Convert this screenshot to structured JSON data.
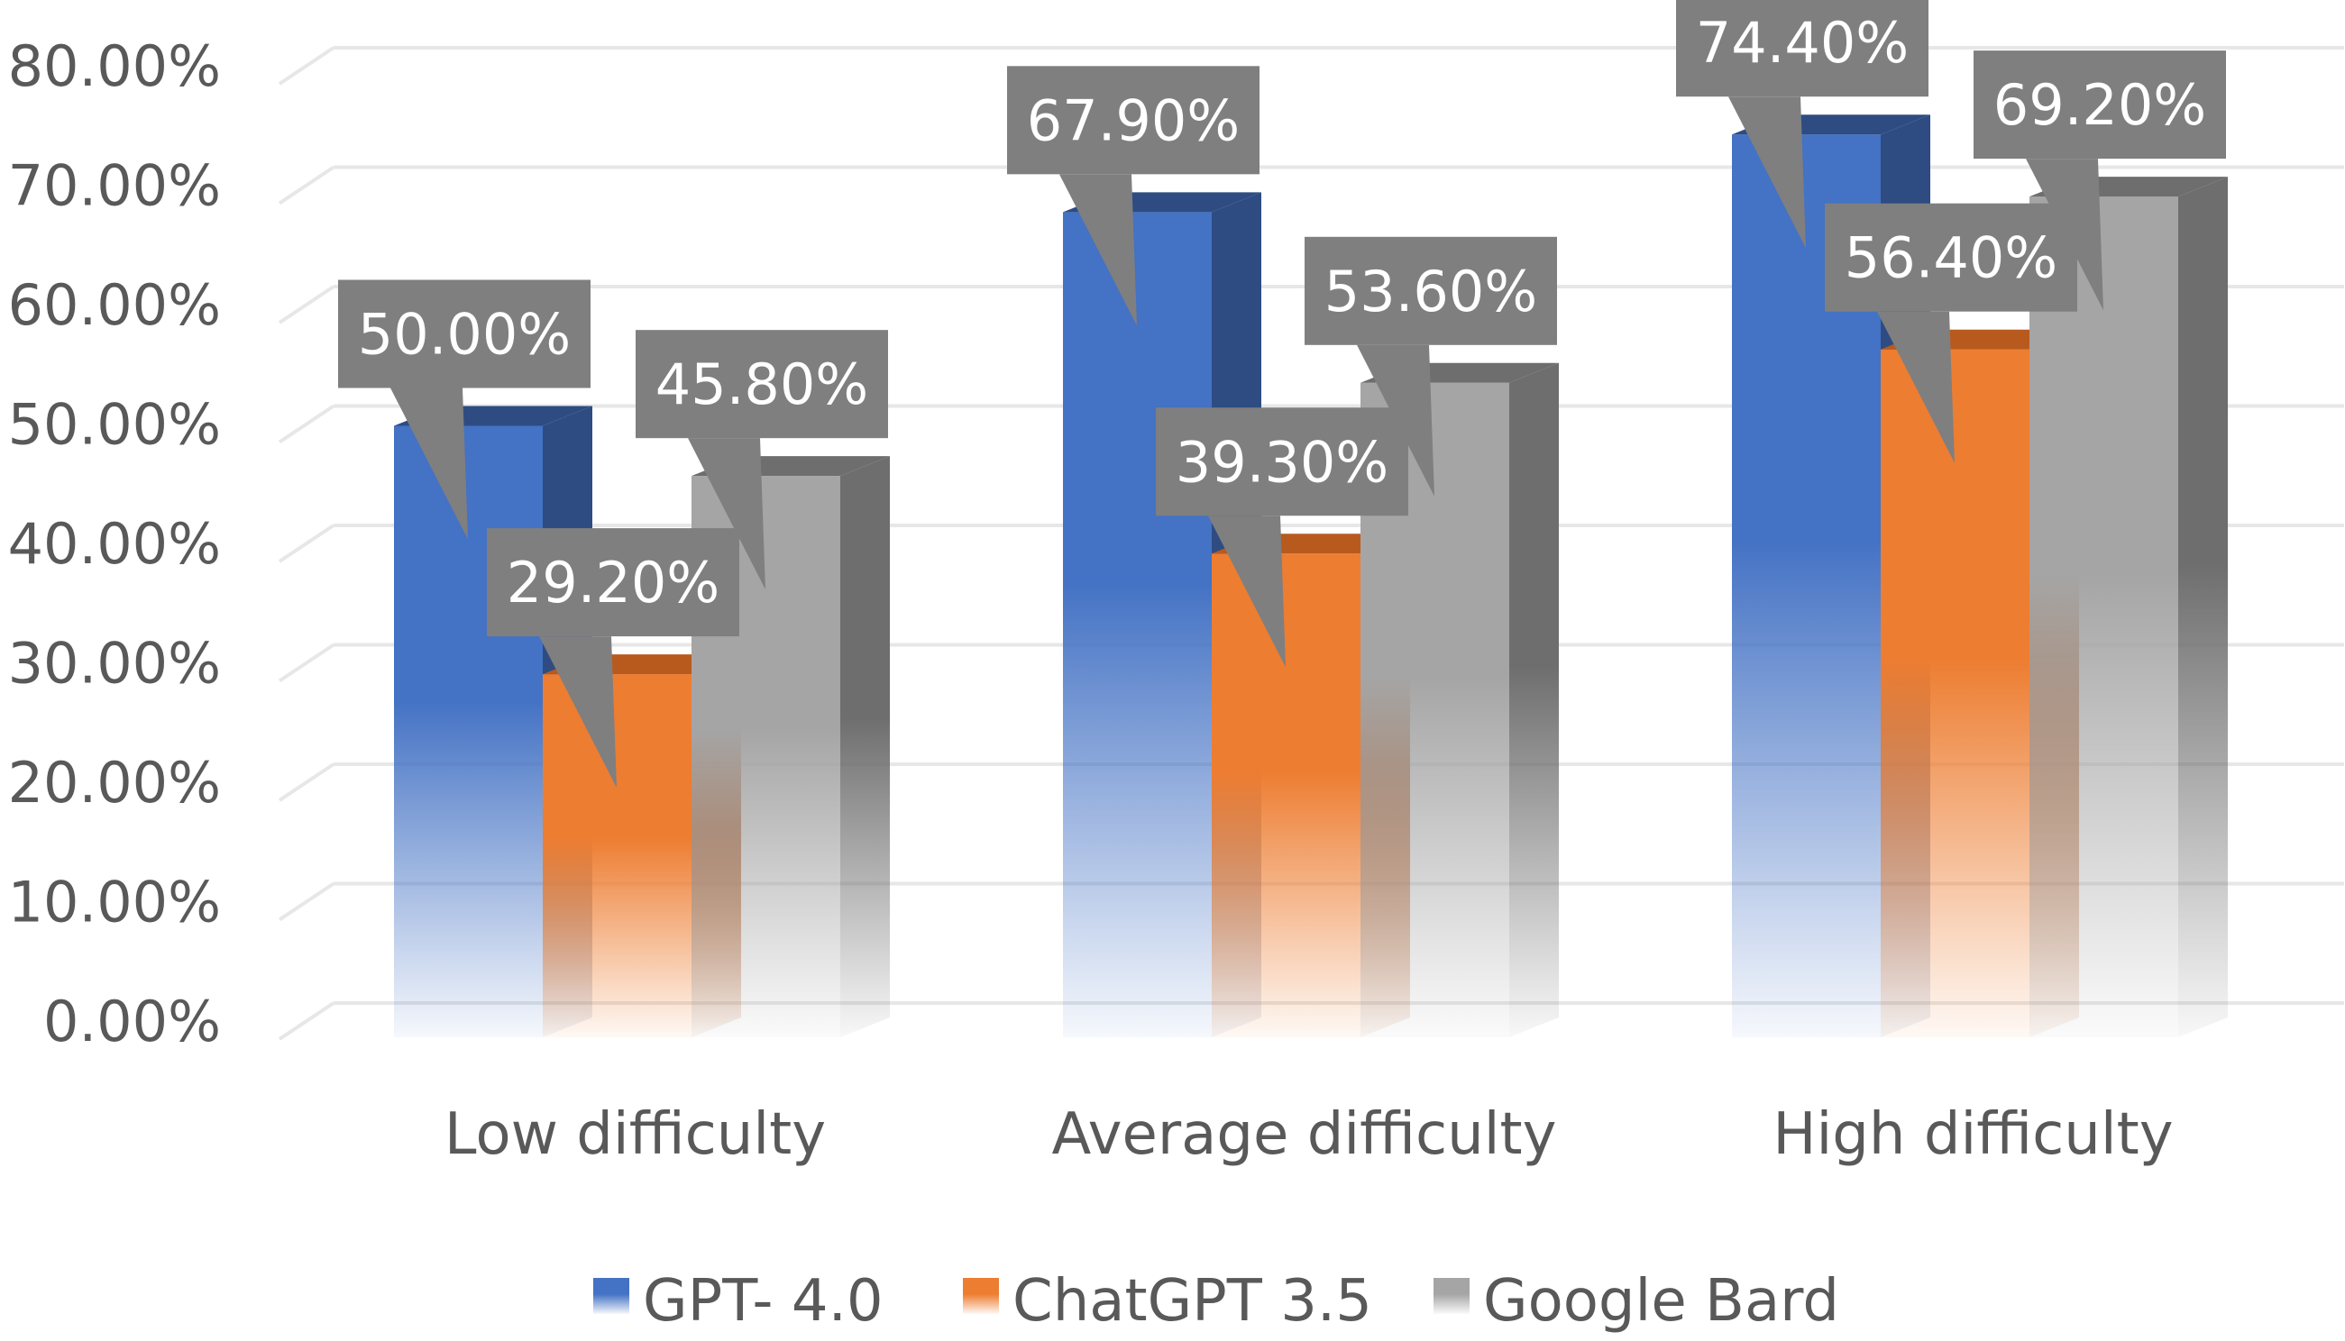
{
  "chart_data": {
    "type": "bar",
    "title": "",
    "xlabel": "",
    "ylabel": "",
    "ylim": [
      0,
      0.8
    ],
    "yticks": [
      0,
      0.1,
      0.2,
      0.3,
      0.4,
      0.5,
      0.6,
      0.7,
      0.8
    ],
    "ytick_labels": [
      "0.00%",
      "10.00%",
      "20.00%",
      "30.00%",
      "40.00%",
      "50.00%",
      "60.00%",
      "70.00%",
      "80.00%"
    ],
    "categories": [
      "Low difficulty",
      "Average difficulty",
      "High difficulty"
    ],
    "series": [
      {
        "name": "GPT- 4.0",
        "values": [
          0.5,
          0.679,
          0.744
        ],
        "labels": [
          "50.00%",
          "67.90%",
          "74.40%"
        ],
        "color": "#4472C4",
        "side_color": "#2E4C82"
      },
      {
        "name": "ChatGPT 3.5",
        "values": [
          0.292,
          0.393,
          0.564
        ],
        "labels": [
          "29.20%",
          "39.30%",
          "56.40%"
        ],
        "color": "#ED7D31",
        "side_color": "#B85A1E"
      },
      {
        "name": "Google Bard",
        "values": [
          0.458,
          0.536,
          0.692
        ],
        "labels": [
          "45.80%",
          "53.60%",
          "69.20%"
        ],
        "color": "#A5A5A5",
        "side_color": "#6E6E6E"
      }
    ],
    "data_label_style": "callout",
    "callout_color": "#7F7F7F",
    "grid": true,
    "legend_position": "bottom"
  }
}
